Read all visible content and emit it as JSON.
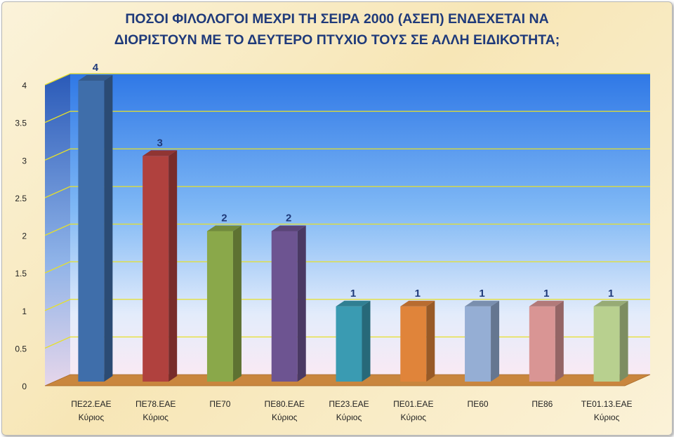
{
  "chart_data": {
    "type": "bar",
    "title_line1": "ΠΟΣΟΙ ΦΙΛΟΛΟΓΟΙ ΜΕΧΡΙ ΤΗ ΣΕΙΡΑ 2000 (ΑΣΕΠ) ΕΝΔΕΧΕΤΑΙ ΝΑ",
    "title_line2": "ΔΙΟΡΙΣΤΟΥΝ ΜΕ ΤΟ ΔΕΥΤΕΡΟ ΠΤΥΧΙΟ ΤΟΥΣ ΣΕ ΑΛΛΗ ΕΙΔΙΚΟΤΗΤΑ;",
    "categories": [
      [
        "ΠΕ22.ΕΑΕ",
        "Κύριος"
      ],
      [
        "ΠΕ78.ΕΑΕ",
        "Κύριος"
      ],
      [
        "ΠΕ70"
      ],
      [
        "ΠΕ80.ΕΑΕ",
        "Κύριος"
      ],
      [
        "ΠΕ23.ΕΑΕ",
        "Κύριος"
      ],
      [
        "ΠΕ01.ΕΑΕ",
        "Κύριος"
      ],
      [
        "ΠΕ60"
      ],
      [
        "ΠΕ86"
      ],
      [
        "ΤΕ01.13.ΕΑΕ",
        "Κύριος"
      ]
    ],
    "values": [
      4,
      3,
      2,
      2,
      1,
      1,
      1,
      1,
      1
    ],
    "data_labels": [
      "4",
      "3",
      "2",
      "2",
      "1",
      "1",
      "1",
      "1",
      "1"
    ],
    "colors": [
      "#3f6eaa",
      "#b0413e",
      "#8aa84a",
      "#6d5491",
      "#3a9bb2",
      "#e0843a",
      "#95aed4",
      "#d99594",
      "#b8d08f"
    ],
    "yticks": [
      "0",
      "0.5",
      "1",
      "1.5",
      "2",
      "2.5",
      "3",
      "3.5",
      "4"
    ],
    "ylim": [
      0,
      4
    ],
    "xlabel": "",
    "ylabel": "",
    "grid": true,
    "legend": "none"
  }
}
